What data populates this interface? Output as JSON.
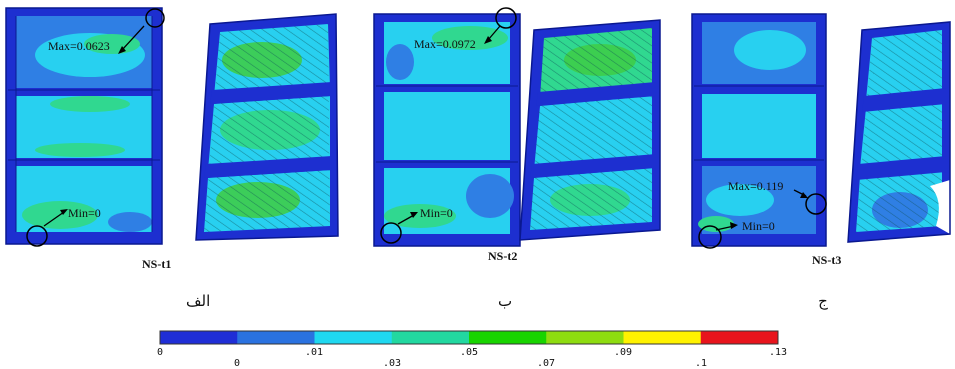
{
  "panels": [
    {
      "case": "NS-t1",
      "letter": "الف",
      "max_label": "Max=0.0623",
      "min_label": "Min=0"
    },
    {
      "case": "NS-t2",
      "letter": "ب",
      "max_label": "Max=0.0972",
      "min_label": "Min=0"
    },
    {
      "case": "NS-t3",
      "letter": "ج",
      "max_label": "Max=0.119",
      "min_label": "Min=0"
    }
  ],
  "legend": {
    "colors": [
      "#1f2ed6",
      "#2a72e0",
      "#1fd8f0",
      "#22d8a0",
      "#18d400",
      "#8edc10",
      "#fff200",
      "#e8141c"
    ],
    "ticks_top": [
      "0",
      ".01",
      ".05",
      ".09",
      ".13"
    ],
    "ticks_bottom": [
      "0",
      ".03",
      ".07",
      ".1"
    ]
  },
  "palette": {
    "frame": "#1d2fd0",
    "frame_dark": "#0a1890",
    "field_blue": "#2f7fe4",
    "field_cyan": "#28d0f0",
    "field_green": "#30d890",
    "field_lime": "#40cc40"
  }
}
